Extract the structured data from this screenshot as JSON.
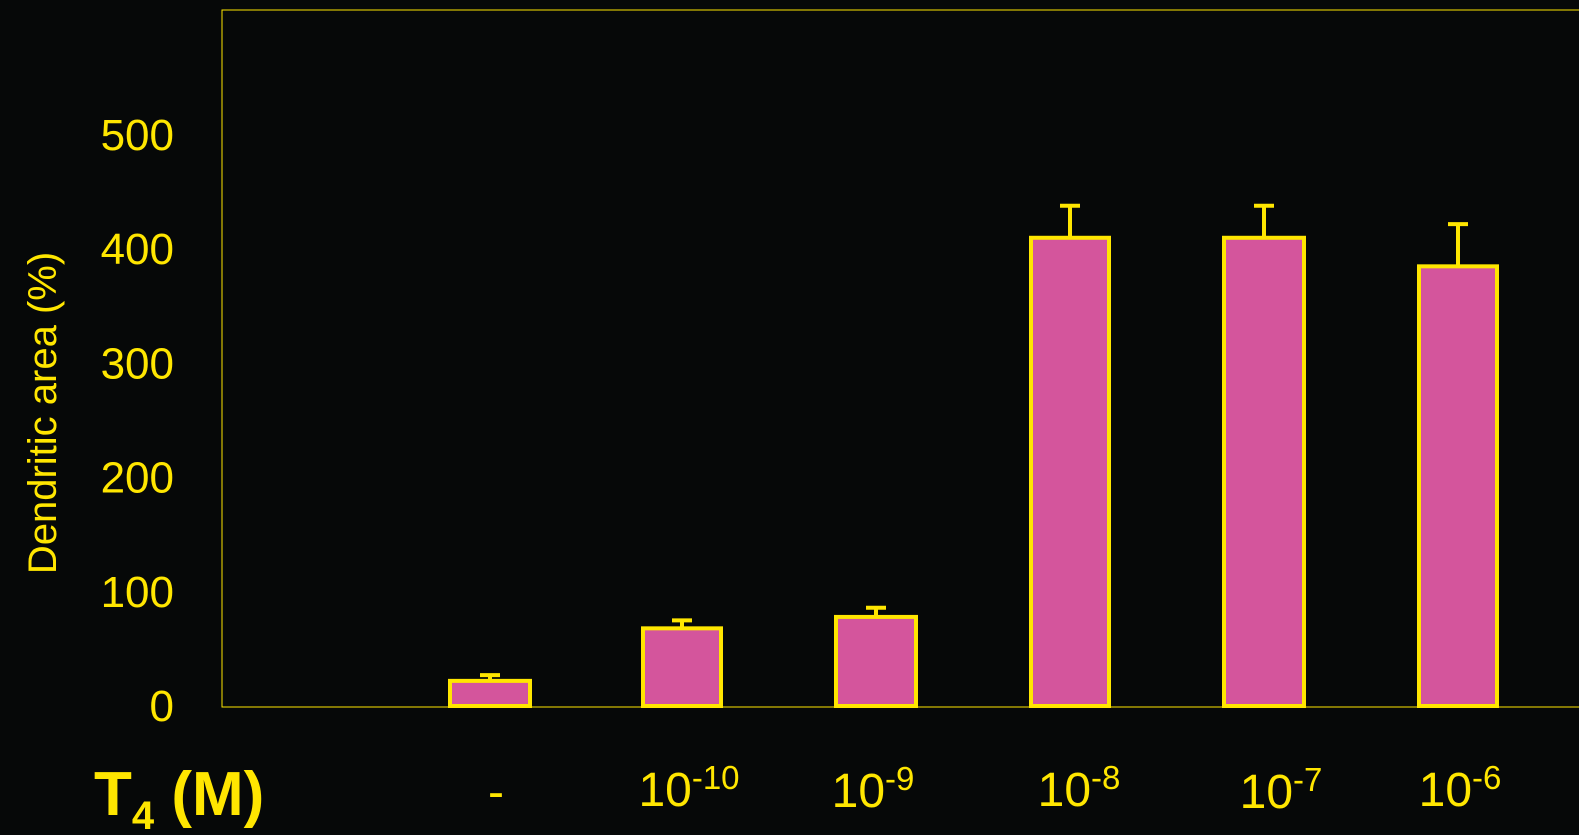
{
  "chart_data": {
    "type": "bar",
    "ylabel": "Dendritic area (%)",
    "xtitle": {
      "main": "T",
      "sub": "4",
      "rest": " (M)"
    },
    "ylim": [
      0,
      610
    ],
    "yticks": [
      0,
      100,
      200,
      300,
      400,
      500
    ],
    "grid": false,
    "categories": [
      {
        "base": "-",
        "exp": ""
      },
      {
        "base": "10",
        "exp": "-10"
      },
      {
        "base": "10",
        "exp": "-9"
      },
      {
        "base": "10",
        "exp": "-8"
      },
      {
        "base": "10",
        "exp": "-7"
      },
      {
        "base": "10",
        "exp": "-6"
      }
    ],
    "values": [
      22,
      68,
      78,
      410,
      410,
      385
    ],
    "errors": [
      5,
      7,
      8,
      28,
      28,
      37
    ],
    "colors": {
      "background": "#060808",
      "bar_fill": "#d4559c",
      "bar_stroke": "#ffe600",
      "axis": "#ffe600",
      "text": "#ffe600"
    }
  }
}
